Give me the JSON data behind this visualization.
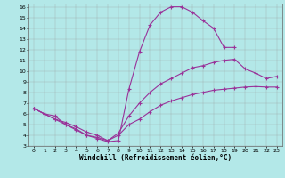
{
  "xlabel": "Windchill (Refroidissement éolien,°C)",
  "bg_color": "#b3e8e8",
  "line_color": "#993399",
  "grid_color": "#999999",
  "xlim": [
    -0.5,
    23.5
  ],
  "ylim": [
    3,
    16.3
  ],
  "xticks": [
    0,
    1,
    2,
    3,
    4,
    5,
    6,
    7,
    8,
    9,
    10,
    11,
    12,
    13,
    14,
    15,
    16,
    17,
    18,
    19,
    20,
    21,
    22,
    23
  ],
  "yticks": [
    3,
    4,
    5,
    6,
    7,
    8,
    9,
    10,
    11,
    12,
    13,
    14,
    15,
    16
  ],
  "line1_x": [
    0,
    1,
    2,
    3,
    4,
    5,
    6,
    7,
    8,
    9,
    10,
    11,
    12,
    13,
    14,
    15,
    16,
    17,
    18,
    19
  ],
  "line1_y": [
    6.5,
    6.0,
    5.5,
    5.0,
    4.5,
    4.0,
    3.7,
    3.4,
    3.5,
    8.3,
    11.8,
    14.3,
    15.5,
    16.0,
    16.0,
    15.5,
    14.7,
    14.0,
    12.2,
    12.2
  ],
  "line2_x": [
    0,
    1,
    2,
    3,
    4,
    5,
    6,
    7,
    8,
    9,
    10,
    11,
    12,
    13,
    14,
    15,
    16,
    17,
    18,
    19,
    20,
    21,
    22,
    23
  ],
  "line2_y": [
    6.5,
    6.0,
    5.5,
    5.2,
    4.8,
    4.3,
    4.0,
    3.5,
    4.2,
    5.8,
    7.0,
    8.0,
    8.8,
    9.3,
    9.8,
    10.3,
    10.5,
    10.8,
    11.0,
    11.1,
    10.2,
    9.8,
    9.3,
    9.5
  ],
  "line3_x": [
    0,
    1,
    2,
    3,
    4,
    5,
    6,
    7,
    8,
    9,
    10,
    11,
    12,
    13,
    14,
    15,
    16,
    17,
    18,
    19,
    20,
    21,
    22,
    23
  ],
  "line3_y": [
    6.5,
    6.0,
    5.8,
    5.0,
    4.6,
    4.0,
    3.8,
    3.5,
    4.0,
    5.0,
    5.5,
    6.2,
    6.8,
    7.2,
    7.5,
    7.8,
    8.0,
    8.2,
    8.3,
    8.4,
    8.5,
    8.55,
    8.5,
    8.5
  ]
}
